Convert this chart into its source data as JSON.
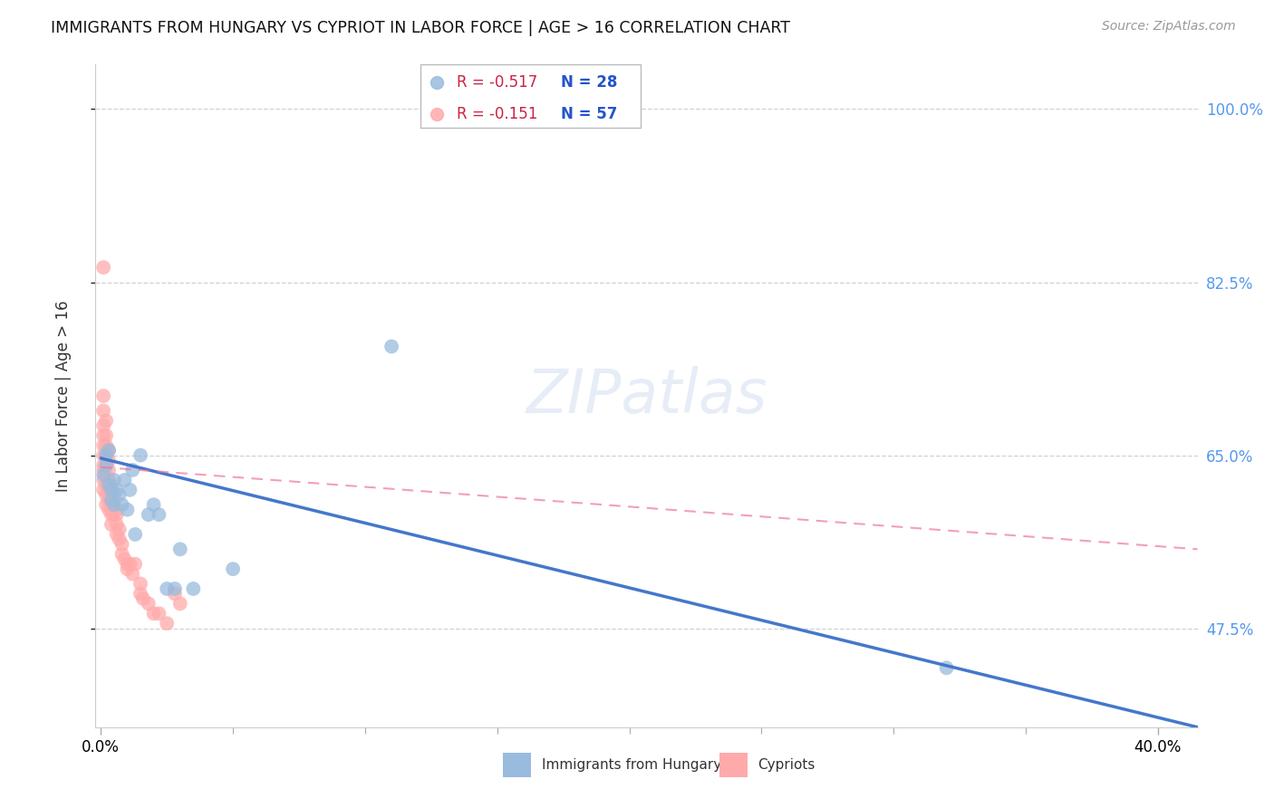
{
  "title": "IMMIGRANTS FROM HUNGARY VS CYPRIOT IN LABOR FORCE | AGE > 16 CORRELATION CHART",
  "source": "Source: ZipAtlas.com",
  "ylabel": "In Labor Force | Age > 16",
  "legend_blue_label": "Immigrants from Hungary",
  "legend_pink_label": "Cypriots",
  "legend_blue_R": "R = -0.517",
  "legend_blue_N": "N = 28",
  "legend_pink_R": "R = -0.151",
  "legend_pink_N": "N = 57",
  "xlim": [
    -0.002,
    0.415
  ],
  "ylim": [
    0.375,
    1.045
  ],
  "yticks": [
    0.475,
    0.65,
    0.825,
    1.0
  ],
  "ytick_labels": [
    "47.5%",
    "65.0%",
    "82.5%",
    "100.0%"
  ],
  "xtick_left": "0.0%",
  "xtick_right": "40.0%",
  "background_color": "#ffffff",
  "grid_color": "#cccccc",
  "blue_color": "#99bbdd",
  "pink_color": "#ffaaaa",
  "blue_line_color": "#4477cc",
  "pink_line_color": "#ee7799",
  "blue_points_x": [
    0.001,
    0.002,
    0.002,
    0.003,
    0.003,
    0.004,
    0.004,
    0.005,
    0.005,
    0.006,
    0.007,
    0.008,
    0.009,
    0.01,
    0.011,
    0.012,
    0.013,
    0.015,
    0.018,
    0.02,
    0.022,
    0.025,
    0.028,
    0.03,
    0.035,
    0.05,
    0.11,
    0.32
  ],
  "blue_points_y": [
    0.63,
    0.64,
    0.65,
    0.655,
    0.62,
    0.615,
    0.605,
    0.625,
    0.6,
    0.615,
    0.61,
    0.6,
    0.625,
    0.595,
    0.615,
    0.635,
    0.57,
    0.65,
    0.59,
    0.6,
    0.59,
    0.515,
    0.515,
    0.555,
    0.515,
    0.535,
    0.76,
    0.435
  ],
  "pink_points_x": [
    0.001,
    0.001,
    0.001,
    0.001,
    0.001,
    0.001,
    0.001,
    0.001,
    0.001,
    0.001,
    0.001,
    0.002,
    0.002,
    0.002,
    0.002,
    0.002,
    0.002,
    0.002,
    0.002,
    0.002,
    0.003,
    0.003,
    0.003,
    0.003,
    0.003,
    0.003,
    0.003,
    0.004,
    0.004,
    0.004,
    0.004,
    0.004,
    0.005,
    0.005,
    0.005,
    0.006,
    0.006,
    0.006,
    0.007,
    0.007,
    0.008,
    0.008,
    0.009,
    0.01,
    0.01,
    0.011,
    0.012,
    0.013,
    0.015,
    0.015,
    0.016,
    0.018,
    0.02,
    0.022,
    0.025,
    0.028,
    0.03
  ],
  "pink_points_y": [
    0.84,
    0.71,
    0.695,
    0.68,
    0.67,
    0.66,
    0.65,
    0.64,
    0.635,
    0.625,
    0.615,
    0.685,
    0.67,
    0.66,
    0.65,
    0.64,
    0.63,
    0.62,
    0.61,
    0.6,
    0.655,
    0.645,
    0.635,
    0.625,
    0.615,
    0.605,
    0.595,
    0.62,
    0.61,
    0.6,
    0.59,
    0.58,
    0.61,
    0.6,
    0.59,
    0.59,
    0.58,
    0.57,
    0.575,
    0.565,
    0.56,
    0.55,
    0.545,
    0.54,
    0.535,
    0.54,
    0.53,
    0.54,
    0.52,
    0.51,
    0.505,
    0.5,
    0.49,
    0.49,
    0.48,
    0.51,
    0.5
  ],
  "blue_trend_x0": 0.0,
  "blue_trend_x1": 0.415,
  "blue_trend_y0": 0.647,
  "blue_trend_y1": 0.375,
  "pink_trend_x0": 0.0,
  "pink_trend_x1": 0.415,
  "pink_trend_y0": 0.638,
  "pink_trend_y1": 0.555
}
